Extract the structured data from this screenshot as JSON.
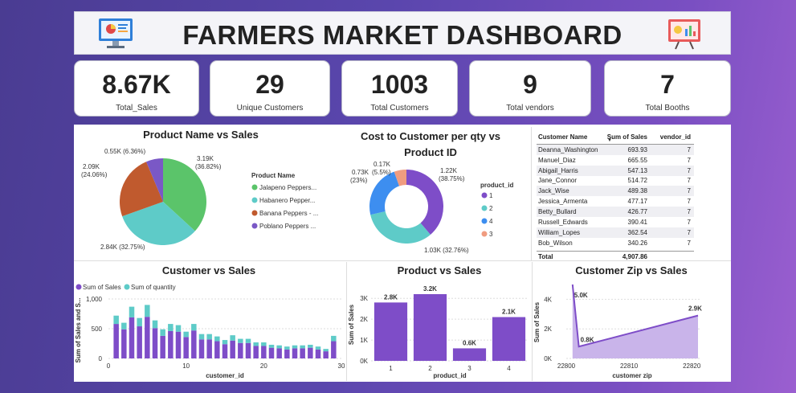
{
  "header": {
    "title": "FARMERS MARKET DASHBOARD"
  },
  "kpis": [
    {
      "value": "8.67K",
      "label": "Total_Sales"
    },
    {
      "value": "29",
      "label": "Unique Customers"
    },
    {
      "value": "1003",
      "label": "Total Customers"
    },
    {
      "value": "9",
      "label": "Total vendors"
    },
    {
      "value": "7",
      "label": "Total Booths"
    }
  ],
  "colors": {
    "purple": "#7e4dc8",
    "teal": "#5ecbc8",
    "green": "#5bc46a",
    "brown": "#c05a2e",
    "blue": "#3d8ef0",
    "salmon": "#f09c80",
    "violet": "#7a58c6"
  },
  "chart_data": [
    {
      "type": "pie",
      "title": "Product Name vs Sales",
      "legend_title": "Product Name",
      "legend": "right",
      "slices": [
        {
          "name": "Jalapeno Peppers...",
          "value": 3190,
          "label": "3.19K (36.82%)",
          "color": "#5bc46a"
        },
        {
          "name": "Habanero Pepper...",
          "value": 2840,
          "label": "2.84K (32.75%)",
          "color": "#5ecbc8"
        },
        {
          "name": "Banana Peppers - ...",
          "value": 2090,
          "label": "2.09K (24.06%)",
          "color": "#c05a2e"
        },
        {
          "name": "Poblano Peppers ...",
          "value": 550,
          "label": "0.55K (6.36%)",
          "color": "#7a58c6"
        }
      ]
    },
    {
      "type": "pie",
      "title": "Cost to Customer per qty vs Product ID",
      "legend_title": "product_id",
      "legend": "right",
      "slices": [
        {
          "name": "1",
          "value": 1220,
          "label": "1.22K (38.75%)",
          "color": "#7e4dc8"
        },
        {
          "name": "2",
          "value": 1030,
          "label": "1.03K (32.76%)",
          "color": "#5ecbc8"
        },
        {
          "name": "4",
          "value": 730,
          "label": "0.73K (23%)",
          "color": "#3d8ef0"
        },
        {
          "name": "3",
          "value": 170,
          "label": "0.17K (5.5%)",
          "color": "#f09c80"
        }
      ]
    },
    {
      "type": "table",
      "columns": [
        "Customer Name",
        "Sum of Sales",
        "vendor_id"
      ],
      "rows": [
        [
          "Deanna_Washington",
          "693.93",
          "7"
        ],
        [
          "Manuel_Diaz",
          "665.55",
          "7"
        ],
        [
          "Abigail_Harris",
          "547.13",
          "7"
        ],
        [
          "Jane_Connor",
          "514.72",
          "7"
        ],
        [
          "Jack_Wise",
          "489.38",
          "7"
        ],
        [
          "Jessica_Armenta",
          "477.17",
          "7"
        ],
        [
          "Betty_Bullard",
          "426.77",
          "7"
        ],
        [
          "Russell_Edwards",
          "390.41",
          "7"
        ],
        [
          "William_Lopes",
          "362.54",
          "7"
        ],
        [
          "Bob_Wilson",
          "340.26",
          "7"
        ]
      ],
      "total": [
        "Total",
        "4,907.86",
        ""
      ]
    },
    {
      "type": "bar",
      "title": "Customer vs Sales",
      "xlabel": "customer_id",
      "ylabel": "Sum of Sales and S...",
      "ylim": [
        0,
        1000
      ],
      "xlim": [
        0,
        30
      ],
      "x_ticks": [
        "0",
        "10",
        "20",
        "30"
      ],
      "y_ticks": [
        "0",
        "500",
        "1,000"
      ],
      "series": [
        {
          "name": "Sum of Sales",
          "color": "#7e4dc8",
          "values": [
            580,
            490,
            690,
            540,
            700,
            510,
            380,
            460,
            450,
            360,
            470,
            320,
            320,
            290,
            240,
            300,
            260,
            260,
            210,
            210,
            180,
            170,
            150,
            170,
            170,
            180,
            150,
            120,
            290
          ]
        },
        {
          "name": "Sum of quantity",
          "color": "#5ecbc8",
          "values": [
            140,
            110,
            180,
            140,
            200,
            130,
            110,
            120,
            110,
            90,
            110,
            90,
            90,
            80,
            70,
            90,
            70,
            70,
            60,
            60,
            50,
            50,
            50,
            50,
            50,
            50,
            50,
            40,
            90
          ]
        }
      ]
    },
    {
      "type": "bar",
      "title": "Product vs Sales",
      "xlabel": "product_id",
      "ylabel": "Sum of Sales",
      "ylim": [
        0,
        3200
      ],
      "categories": [
        "1",
        "2",
        "3",
        "4"
      ],
      "values": [
        2800,
        3200,
        600,
        2100
      ],
      "data_labels": [
        "2.8K",
        "3.2K",
        "0.6K",
        "2.1K"
      ],
      "y_ticks": [
        "0K",
        "1K",
        "2K",
        "3K"
      ]
    },
    {
      "type": "area",
      "title": "Customer Zip vs Sales",
      "xlabel": "customer zip",
      "ylabel": "Sum of Sales",
      "x": [
        22801,
        22802,
        22821
      ],
      "y": [
        5000,
        800,
        2900
      ],
      "data_labels": [
        "5.0K",
        "0.8K",
        "2.9K"
      ],
      "xlim": [
        22800,
        22821
      ],
      "ylim": [
        0,
        5000
      ],
      "x_ticks": [
        "22800",
        "22810",
        "22820"
      ],
      "y_ticks": [
        "0K",
        "2K",
        "4K"
      ]
    }
  ]
}
